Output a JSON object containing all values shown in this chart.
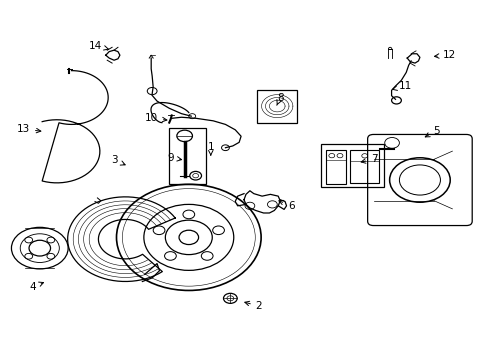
{
  "bg_color": "#ffffff",
  "line_color": "#000000",
  "fig_width": 4.9,
  "fig_height": 3.6,
  "dpi": 100,
  "label_positions": {
    "1": [
      0.43,
      0.595,
      0.43,
      0.56
    ],
    "2": [
      0.518,
      0.148,
      0.495,
      0.162
    ],
    "3": [
      0.248,
      0.548,
      0.268,
      0.53
    ],
    "4": [
      0.08,
      0.2,
      0.092,
      0.218
    ],
    "5": [
      0.882,
      0.64,
      0.858,
      0.62
    ],
    "6": [
      0.578,
      0.43,
      0.558,
      0.45
    ],
    "7": [
      0.75,
      0.555,
      0.728,
      0.545
    ],
    "8": [
      0.572,
      0.72,
      0.572,
      0.7
    ],
    "9": [
      0.362,
      0.56,
      0.385,
      0.555
    ],
    "10": [
      0.328,
      0.668,
      0.355,
      0.665
    ],
    "11": [
      0.808,
      0.762,
      0.794,
      0.752
    ],
    "12": [
      0.9,
      0.842,
      0.878,
      0.84
    ],
    "13": [
      0.064,
      0.64,
      0.09,
      0.632
    ],
    "14": [
      0.215,
      0.875,
      0.232,
      0.862
    ]
  }
}
